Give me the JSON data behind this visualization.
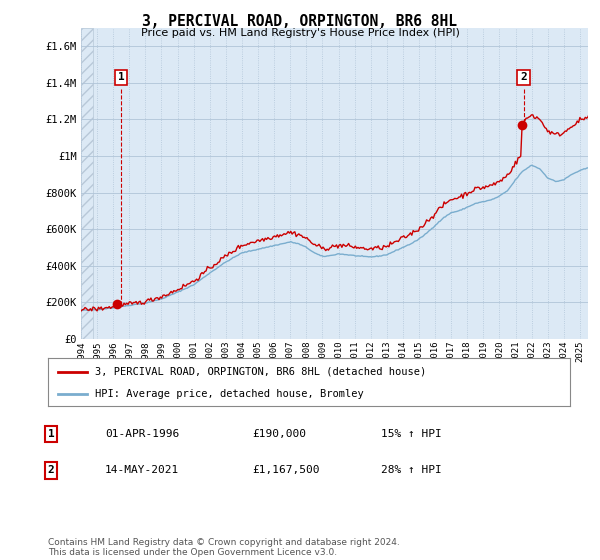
{
  "title": "3, PERCIVAL ROAD, ORPINGTON, BR6 8HL",
  "subtitle": "Price paid vs. HM Land Registry's House Price Index (HPI)",
  "ylim": [
    0,
    1700000
  ],
  "yticks": [
    0,
    200000,
    400000,
    600000,
    800000,
    1000000,
    1200000,
    1400000,
    1600000
  ],
  "ytick_labels": [
    "£0",
    "£200K",
    "£400K",
    "£600K",
    "£800K",
    "£1M",
    "£1.2M",
    "£1.4M",
    "£1.6M"
  ],
  "sale1_year": 1996.25,
  "sale1_price": 190000,
  "sale2_year": 2021.37,
  "sale2_price": 1167500,
  "legend_line1": "3, PERCIVAL ROAD, ORPINGTON, BR6 8HL (detached house)",
  "legend_line2": "HPI: Average price, detached house, Bromley",
  "annotation1_date": "01-APR-1996",
  "annotation1_price": "£190,000",
  "annotation1_hpi": "15% ↑ HPI",
  "annotation2_date": "14-MAY-2021",
  "annotation2_price": "£1,167,500",
  "annotation2_hpi": "28% ↑ HPI",
  "footnote": "Contains HM Land Registry data © Crown copyright and database right 2024.\nThis data is licensed under the Open Government Licence v3.0.",
  "line_color_red": "#cc0000",
  "line_color_blue": "#7aadce",
  "background_color": "#ffffff",
  "plot_bg_color": "#dce9f5",
  "grid_color": "#b0c4d8",
  "hatch_color": "#b8c8d8",
  "badge_edge_color": "#cc0000"
}
